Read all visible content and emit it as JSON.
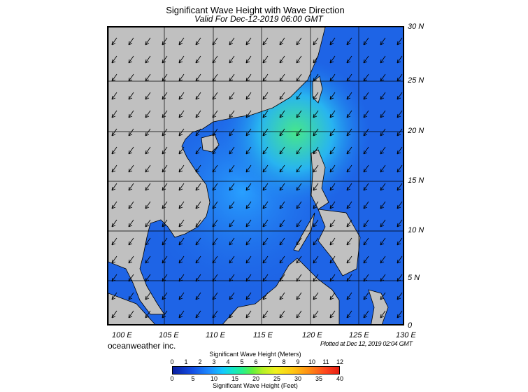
{
  "title": "Significant Wave Height with Wave Direction",
  "subtitle": "Valid For Dec-12-2019 06:00 GMT",
  "credit": "oceanweather inc.",
  "plotted": "Plotted at Dec 12, 2019 02:04 GMT",
  "lat_labels": [
    "30 N",
    "25 N",
    "20 N",
    "15 N",
    "10 N",
    "5 N",
    "0"
  ],
  "lon_labels": [
    "100 E",
    "105 E",
    "110 E",
    "115 E",
    "120 E",
    "125 E",
    "130 E"
  ],
  "colorbar": {
    "meters_title": "Significant Wave Height (Meters)",
    "feet_title": "Significant Wave Height (Feet)",
    "meters_ticks": [
      "0",
      "1",
      "2",
      "3",
      "4",
      "5",
      "6",
      "7",
      "8",
      "9",
      "10",
      "11",
      "12"
    ],
    "feet_ticks": [
      "0",
      "5",
      "10",
      "15",
      "20",
      "25",
      "30",
      "35",
      "40"
    ]
  },
  "colors": {
    "land": "#c0c0c0",
    "sea_low": "#1e50e6",
    "sea_mid": "#1e96ff",
    "sea_high": "#3cdc8c"
  }
}
